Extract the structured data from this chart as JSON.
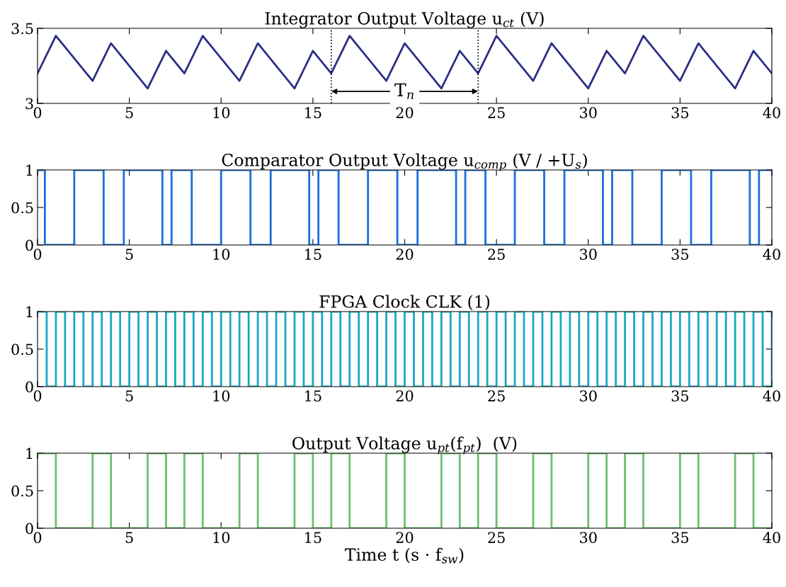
{
  "chart_data": [
    {
      "type": "line",
      "title": "Integrator Output Voltage u$_{ct}$ (V)",
      "series": [
        {
          "color": "#2b2f85",
          "x": [
            0,
            1,
            3,
            4,
            6,
            7,
            8,
            9,
            11,
            12,
            14,
            15,
            16,
            17,
            19,
            20,
            22,
            23,
            24,
            25,
            27,
            28,
            30,
            31,
            32,
            33,
            35,
            36,
            38,
            39,
            40
          ],
          "values": [
            3.2,
            3.45,
            3.15,
            3.4,
            3.1,
            3.35,
            3.2,
            3.45,
            3.15,
            3.4,
            3.1,
            3.35,
            3.2,
            3.45,
            3.15,
            3.4,
            3.1,
            3.35,
            3.2,
            3.45,
            3.15,
            3.4,
            3.1,
            3.35,
            3.2,
            3.45,
            3.15,
            3.4,
            3.1,
            3.35,
            3.2
          ]
        }
      ],
      "xlim": [
        0,
        40
      ],
      "xticks": [
        0,
        5,
        10,
        15,
        20,
        25,
        30,
        35,
        40
      ],
      "ylim": [
        3,
        3.5
      ],
      "yticks": [
        3,
        3.5
      ],
      "grid": false,
      "legend": false,
      "ref_lines": [
        {
          "axis": "x",
          "value": 16,
          "color": "#000000",
          "line_style": "dotted"
        },
        {
          "axis": "x",
          "value": 24,
          "color": "#000000",
          "line_style": "dotted"
        }
      ],
      "annotations": [
        {
          "text": "T$_{n}$",
          "x": 20,
          "y": 3.08
        }
      ]
    },
    {
      "type": "step",
      "title": "Comparator Output Voltage u$_{comp}$ (V / +U$_{s}$)",
      "series": [
        {
          "color": "#1a6fdf",
          "x": [
            0,
            0.4,
            2.0,
            3.6,
            4.7,
            6.8,
            7.3,
            8.4,
            10.0,
            11.6,
            12.7,
            14.8,
            15.3,
            16.4,
            18.0,
            19.6,
            20.7,
            22.8,
            23.3,
            24.4,
            26.0,
            27.6,
            28.7,
            30.8,
            31.3,
            32.4,
            34.0,
            35.6,
            36.7,
            38.8,
            39.3,
            40
          ],
          "values": [
            1,
            0,
            1,
            0,
            1,
            0,
            1,
            0,
            1,
            0,
            1,
            0,
            1,
            0,
            1,
            0,
            1,
            0,
            1,
            0,
            1,
            0,
            1,
            0,
            1,
            0,
            1,
            0,
            1,
            0,
            1,
            1
          ]
        }
      ],
      "xlim": [
        0,
        40
      ],
      "xticks": [
        0,
        5,
        10,
        15,
        20,
        25,
        30,
        35,
        40
      ],
      "ylim": [
        0,
        1
      ],
      "yticks": [
        0,
        0.5,
        1
      ],
      "grid": false,
      "legend": false
    },
    {
      "type": "step",
      "title": "FPGA Clock CLK (1)",
      "series": [
        {
          "color": "#17a9c4",
          "x": [
            0,
            0.5,
            1,
            1.5,
            2,
            2.5,
            3,
            3.5,
            4,
            4.5,
            5,
            5.5,
            6,
            6.5,
            7,
            7.5,
            8,
            8.5,
            9,
            9.5,
            10,
            10.5,
            11,
            11.5,
            12,
            12.5,
            13,
            13.5,
            14,
            14.5,
            15,
            15.5,
            16,
            16.5,
            17,
            17.5,
            18,
            18.5,
            19,
            19.5,
            20,
            20.5,
            21,
            21.5,
            22,
            22.5,
            23,
            23.5,
            24,
            24.5,
            25,
            25.5,
            26,
            26.5,
            27,
            27.5,
            28,
            28.5,
            29,
            29.5,
            30,
            30.5,
            31,
            31.5,
            32,
            32.5,
            33,
            33.5,
            34,
            34.5,
            35,
            35.5,
            36,
            36.5,
            37,
            37.5,
            38,
            38.5,
            39,
            39.5,
            40
          ],
          "values": [
            1,
            0,
            1,
            0,
            1,
            0,
            1,
            0,
            1,
            0,
            1,
            0,
            1,
            0,
            1,
            0,
            1,
            0,
            1,
            0,
            1,
            0,
            1,
            0,
            1,
            0,
            1,
            0,
            1,
            0,
            1,
            0,
            1,
            0,
            1,
            0,
            1,
            0,
            1,
            0,
            1,
            0,
            1,
            0,
            1,
            0,
            1,
            0,
            1,
            0,
            1,
            0,
            1,
            0,
            1,
            0,
            1,
            0,
            1,
            0,
            1,
            0,
            1,
            0,
            1,
            0,
            1,
            0,
            1,
            0,
            1,
            0,
            1,
            0,
            1,
            0,
            1,
            0,
            1,
            0,
            1
          ]
        }
      ],
      "xlim": [
        0,
        40
      ],
      "xticks": [
        0,
        5,
        10,
        15,
        20,
        25,
        30,
        35,
        40
      ],
      "ylim": [
        0,
        1
      ],
      "yticks": [
        0,
        0.5,
        1
      ],
      "grid": false,
      "legend": false
    },
    {
      "type": "step",
      "title": "Output Voltage u$_{pt}$(f$_{pt}$)  (V)",
      "xlabel": "Time t (s · f$_{sw}$)",
      "series": [
        {
          "color": "#6cc06c",
          "x": [
            0,
            1,
            3,
            4,
            6,
            7,
            8,
            9,
            11,
            12,
            14,
            15,
            16,
            17,
            19,
            20,
            22,
            23,
            24,
            25,
            27,
            28,
            30,
            31,
            32,
            33,
            35,
            36,
            38,
            39,
            40
          ],
          "values": [
            1,
            0,
            1,
            0,
            1,
            0,
            1,
            0,
            1,
            0,
            1,
            0,
            1,
            0,
            1,
            0,
            1,
            0,
            1,
            0,
            1,
            0,
            1,
            0,
            1,
            0,
            1,
            0,
            1,
            0,
            0
          ]
        }
      ],
      "xlim": [
        0,
        40
      ],
      "xticks": [
        0,
        5,
        10,
        15,
        20,
        25,
        30,
        35,
        40
      ],
      "ylim": [
        0,
        1
      ],
      "yticks": [
        0,
        0.5,
        1
      ],
      "grid": false,
      "legend": false
    }
  ]
}
